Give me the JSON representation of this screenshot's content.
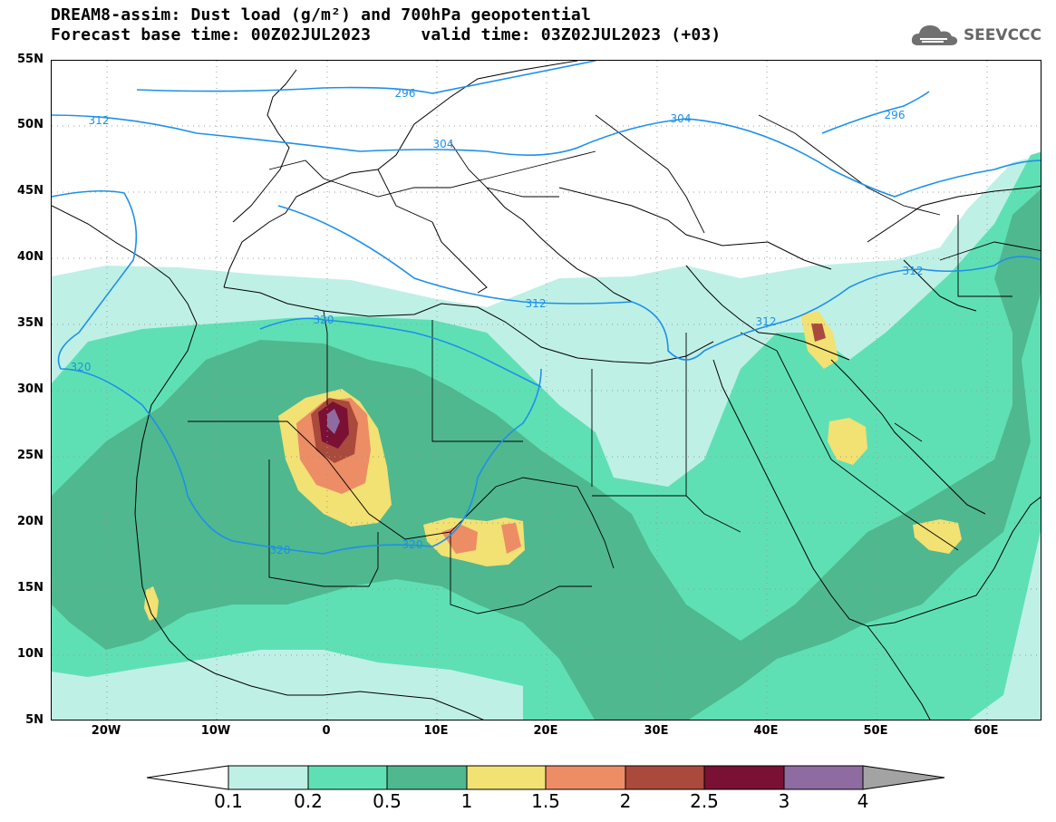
{
  "title_line1": "DREAM8-assim: Dust load (g/m²) and 700hPa geopotential",
  "title_line2": "Forecast base time: 00Z02JUL2023     valid time: 03Z02JUL2023 (+03)",
  "logo_text": "SEEVCCC",
  "lat_labels": [
    "55N",
    "50N",
    "45N",
    "40N",
    "35N",
    "30N",
    "25N",
    "20N",
    "15N",
    "10N",
    "5N"
  ],
  "lon_labels": [
    "20W",
    "10W",
    "0",
    "10E",
    "20E",
    "30E",
    "40E",
    "50E",
    "60E"
  ],
  "contour_labels": [
    "296",
    "312",
    "304",
    "296",
    "304",
    "312",
    "320",
    "312",
    "320",
    "312",
    "320",
    "320"
  ],
  "colorbar": {
    "levels": [
      "0.1",
      "0.2",
      "0.5",
      "1",
      "1.5",
      "2",
      "2.5",
      "3",
      "4"
    ],
    "colors": [
      "#ffffff",
      "#bff0e6",
      "#5fe0b4",
      "#4fb88f",
      "#f2e173",
      "#ec8d66",
      "#aa4a3c",
      "#7a1034",
      "#8e6ba0",
      "#a3a3a3"
    ]
  }
}
